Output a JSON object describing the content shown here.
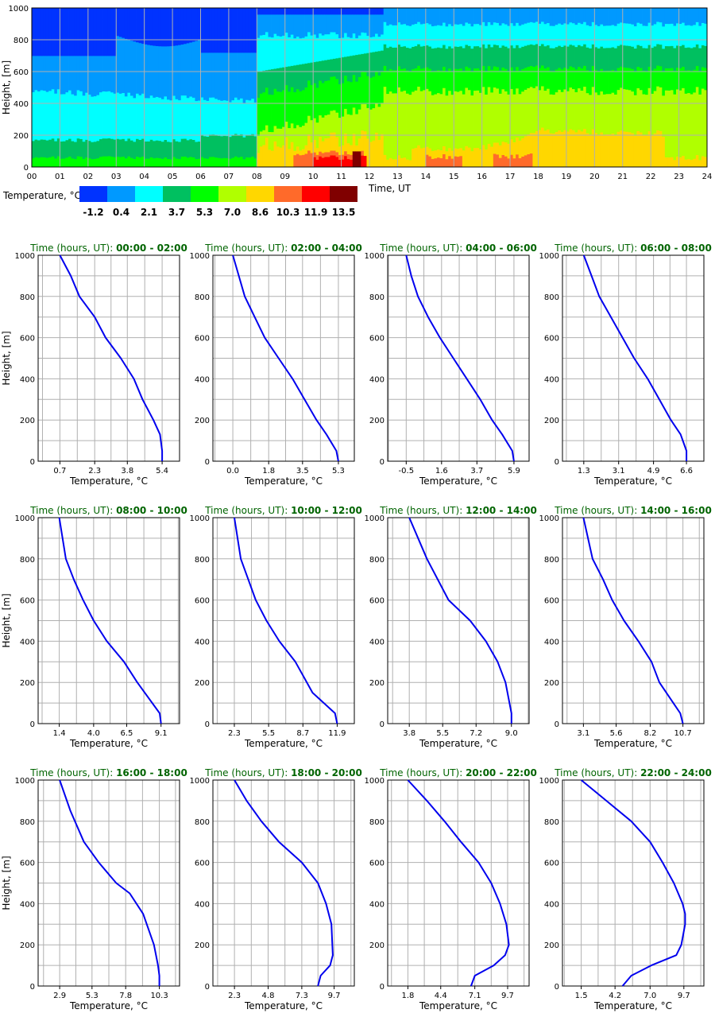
{
  "chart_data": [
    {
      "type": "heatmap",
      "xlabel": "Time, UT",
      "ylabel": "Height, [m]",
      "xlim": [
        0,
        24
      ],
      "ylim": [
        0,
        1000
      ],
      "x_ticks": [
        "00",
        "01",
        "02",
        "03",
        "04",
        "05",
        "06",
        "07",
        "08",
        "09",
        "10",
        "11",
        "12",
        "13",
        "14",
        "15",
        "16",
        "17",
        "18",
        "19",
        "20",
        "21",
        "22",
        "23",
        "24"
      ],
      "y_ticks": [
        "0",
        "200",
        "400",
        "600",
        "800",
        "1000"
      ],
      "grid": true,
      "legend": {
        "title": "Temperature, °C",
        "placement": "bottom-left",
        "labels": [
          "-1.2",
          "0.4",
          "2.1",
          "3.7",
          "5.3",
          "7.0",
          "8.6",
          "10.3",
          "11.9",
          "13.5"
        ],
        "colors": [
          "#0033ff",
          "#0099ff",
          "#00ffff",
          "#00c060",
          "#00ff00",
          "#b0ff00",
          "#ffd700",
          "#ff6a2a",
          "#ff0000",
          "#800000"
        ]
      }
    },
    {
      "type": "line",
      "title_prefix": "Time (hours, UT)",
      "title_range": "00:00 - 02:00",
      "xlabel": "Temperature, °C",
      "ylabel": "Height, [m]",
      "x_ticks": [
        "0.7",
        "2.3",
        "3.8",
        "5.4"
      ],
      "xlim": [
        -0.3,
        6.2
      ],
      "ylim": [
        0,
        1000
      ],
      "y_ticks": [
        "0",
        "200",
        "400",
        "600",
        "800",
        "1000"
      ],
      "series": [
        {
          "color": "#0000ee",
          "x": [
            0.7,
            1.2,
            1.6,
            2.3,
            2.8,
            3.5,
            4.1,
            4.5,
            5.0,
            5.3,
            5.4,
            5.4
          ],
          "y": [
            1000,
            900,
            800,
            700,
            600,
            500,
            400,
            300,
            200,
            130,
            50,
            0
          ]
        }
      ]
    },
    {
      "type": "line",
      "title_prefix": "Time (hours, UT)",
      "title_range": "02:00 - 04:00",
      "xlabel": "Temperature, °C",
      "ylabel": "Height, [m]",
      "x_ticks": [
        "0.0",
        "1.8",
        "3.5",
        "5.3"
      ],
      "xlim": [
        -1.0,
        6.1
      ],
      "ylim": [
        0,
        1000
      ],
      "y_ticks": [
        "0",
        "200",
        "400",
        "600",
        "800",
        "1000"
      ],
      "series": [
        {
          "color": "#0000ee",
          "x": [
            0.0,
            0.3,
            0.6,
            1.1,
            1.6,
            2.3,
            3.0,
            3.6,
            4.2,
            4.7,
            5.2,
            5.3
          ],
          "y": [
            1000,
            900,
            800,
            700,
            600,
            500,
            400,
            300,
            200,
            130,
            50,
            0
          ]
        }
      ]
    },
    {
      "type": "line",
      "title_prefix": "Time (hours, UT)",
      "title_range": "04:00 - 06:00",
      "xlabel": "Temperature, °C",
      "ylabel": "Height, [m]",
      "x_ticks": [
        "-0.5",
        "1.6",
        "3.7",
        "5.9"
      ],
      "xlim": [
        -1.6,
        6.8
      ],
      "ylim": [
        0,
        1000
      ],
      "y_ticks": [
        "0",
        "200",
        "400",
        "600",
        "800",
        "1000"
      ],
      "series": [
        {
          "color": "#0000ee",
          "x": [
            -0.5,
            -0.2,
            0.2,
            0.8,
            1.5,
            2.3,
            3.1,
            3.9,
            4.6,
            5.2,
            5.8,
            5.9
          ],
          "y": [
            1000,
            900,
            800,
            700,
            600,
            500,
            400,
            300,
            200,
            130,
            50,
            0
          ]
        }
      ]
    },
    {
      "type": "line",
      "title_prefix": "Time (hours, UT)",
      "title_range": "06:00 - 08:00",
      "xlabel": "Temperature, °C",
      "ylabel": "Height, [m]",
      "x_ticks": [
        "1.3",
        "3.1",
        "4.9",
        "6.6"
      ],
      "xlim": [
        0.2,
        7.5
      ],
      "ylim": [
        0,
        1000
      ],
      "y_ticks": [
        "0",
        "200",
        "400",
        "600",
        "800",
        "1000"
      ],
      "series": [
        {
          "color": "#0000ee",
          "x": [
            1.3,
            1.7,
            2.1,
            2.7,
            3.3,
            3.9,
            4.6,
            5.2,
            5.8,
            6.3,
            6.6,
            6.6
          ],
          "y": [
            1000,
            900,
            800,
            700,
            600,
            500,
            400,
            300,
            200,
            130,
            50,
            0
          ]
        }
      ]
    },
    {
      "type": "line",
      "title_prefix": "Time (hours, UT)",
      "title_range": "08:00 - 10:00",
      "xlabel": "Temperature, °C",
      "ylabel": "Height, [m]",
      "x_ticks": [
        "1.4",
        "4.0",
        "6.5",
        "9.1"
      ],
      "xlim": [
        -0.2,
        10.5
      ],
      "ylim": [
        0,
        1000
      ],
      "y_ticks": [
        "0",
        "200",
        "400",
        "600",
        "800",
        "1000"
      ],
      "series": [
        {
          "color": "#0000ee",
          "x": [
            1.4,
            1.9,
            2.5,
            3.2,
            4.0,
            5.0,
            6.3,
            7.3,
            9.0,
            9.1
          ],
          "y": [
            1000,
            800,
            700,
            600,
            500,
            400,
            300,
            200,
            50,
            0
          ]
        }
      ]
    },
    {
      "type": "line",
      "title_prefix": "Time (hours, UT)",
      "title_range": "10:00 - 12:00",
      "xlabel": "Temperature, °C",
      "ylabel": "Height, [m]",
      "x_ticks": [
        "2.3",
        "5.5",
        "8.7",
        "11.9"
      ],
      "xlim": [
        0.3,
        13.5
      ],
      "ylim": [
        0,
        1000
      ],
      "y_ticks": [
        "0",
        "200",
        "400",
        "600",
        "800",
        "1000"
      ],
      "series": [
        {
          "color": "#0000ee",
          "x": [
            2.3,
            2.9,
            3.6,
            4.3,
            5.3,
            6.5,
            8.0,
            9.6,
            11.7,
            11.9
          ],
          "y": [
            1000,
            800,
            700,
            600,
            500,
            400,
            300,
            150,
            50,
            0
          ]
        }
      ]
    },
    {
      "type": "line",
      "title_prefix": "Time (hours, UT)",
      "title_range": "12:00 - 14:00",
      "xlabel": "Temperature, °C",
      "ylabel": "Height, [m]",
      "x_ticks": [
        "3.8",
        "5.5",
        "7.2",
        "9.0"
      ],
      "xlim": [
        2.7,
        9.9
      ],
      "ylim": [
        0,
        1000
      ],
      "y_ticks": [
        "0",
        "200",
        "400",
        "600",
        "800",
        "1000"
      ],
      "series": [
        {
          "color": "#0000ee",
          "x": [
            3.8,
            4.7,
            5.8,
            6.9,
            7.7,
            8.3,
            8.7,
            8.9,
            9.0,
            9.0
          ],
          "y": [
            1000,
            800,
            600,
            500,
            400,
            300,
            200,
            100,
            50,
            0
          ]
        }
      ]
    },
    {
      "type": "line",
      "title_prefix": "Time (hours, UT)",
      "title_range": "14:00 - 16:00",
      "xlabel": "Temperature, °C",
      "ylabel": "Height, [m]",
      "x_ticks": [
        "3.1",
        "5.6",
        "8.2",
        "10.7"
      ],
      "xlim": [
        1.5,
        12.3
      ],
      "ylim": [
        0,
        1000
      ],
      "y_ticks": [
        "0",
        "200",
        "400",
        "600",
        "800",
        "1000"
      ],
      "series": [
        {
          "color": "#0000ee",
          "x": [
            3.1,
            3.8,
            4.6,
            5.3,
            6.2,
            7.3,
            8.3,
            8.9,
            10.5,
            10.7
          ],
          "y": [
            1000,
            800,
            700,
            600,
            500,
            400,
            300,
            200,
            50,
            0
          ]
        }
      ]
    },
    {
      "type": "line",
      "title_prefix": "Time (hours, UT)",
      "title_range": "16:00 - 18:00",
      "xlabel": "Temperature, °C",
      "ylabel": "Height, [m]",
      "x_ticks": [
        "2.9",
        "5.3",
        "7.8",
        "10.3"
      ],
      "xlim": [
        1.3,
        11.8
      ],
      "ylim": [
        0,
        1000
      ],
      "y_ticks": [
        "0",
        "200",
        "400",
        "600",
        "800",
        "1000"
      ],
      "series": [
        {
          "color": "#0000ee",
          "x": [
            2.9,
            3.7,
            4.7,
            5.8,
            7.1,
            8.1,
            9.1,
            9.9,
            10.2,
            10.3,
            10.3
          ],
          "y": [
            1000,
            850,
            700,
            600,
            500,
            450,
            350,
            200,
            100,
            50,
            0
          ]
        }
      ]
    },
    {
      "type": "line",
      "title_prefix": "Time (hours, UT)",
      "title_range": "18:00 - 20:00",
      "xlabel": "Temperature, °C",
      "ylabel": "Height, [m]",
      "x_ticks": [
        "2.3",
        "4.8",
        "7.3",
        "9.7"
      ],
      "xlim": [
        0.7,
        11.2
      ],
      "ylim": [
        0,
        1000
      ],
      "y_ticks": [
        "0",
        "200",
        "400",
        "600",
        "800",
        "1000"
      ],
      "series": [
        {
          "color": "#0000ee",
          "x": [
            2.3,
            3.2,
            4.3,
            5.6,
            7.3,
            8.5,
            9.1,
            9.5,
            9.6,
            9.4,
            8.7,
            8.5
          ],
          "y": [
            1000,
            900,
            800,
            700,
            600,
            500,
            400,
            300,
            150,
            100,
            50,
            0
          ]
        }
      ]
    },
    {
      "type": "line",
      "title_prefix": "Time (hours, UT)",
      "title_range": "20:00 - 22:00",
      "xlabel": "Temperature, °C",
      "ylabel": "Height, [m]",
      "x_ticks": [
        "1.8",
        "4.4",
        "7.1",
        "9.7"
      ],
      "xlim": [
        0.2,
        11.4
      ],
      "ylim": [
        0,
        1000
      ],
      "y_ticks": [
        "0",
        "200",
        "400",
        "600",
        "800",
        "1000"
      ],
      "series": [
        {
          "color": "#0000ee",
          "x": [
            1.8,
            3.3,
            4.7,
            6.0,
            7.4,
            8.4,
            9.1,
            9.6,
            9.8,
            9.5,
            8.6,
            7.1,
            6.8
          ],
          "y": [
            1000,
            900,
            800,
            700,
            600,
            500,
            400,
            300,
            200,
            150,
            100,
            50,
            0
          ]
        }
      ]
    },
    {
      "type": "line",
      "title_prefix": "Time (hours, UT)",
      "title_range": "22:00 - 24:00",
      "xlabel": "Temperature, °C",
      "ylabel": "Height, [m]",
      "x_ticks": [
        "1.5",
        "4.2",
        "7.0",
        "9.7"
      ],
      "xlim": [
        0.0,
        11.3
      ],
      "ylim": [
        0,
        1000
      ],
      "y_ticks": [
        "0",
        "200",
        "400",
        "600",
        "800",
        "1000"
      ],
      "series": [
        {
          "color": "#0000ee",
          "x": [
            1.5,
            3.5,
            5.5,
            7.0,
            8.0,
            8.9,
            9.6,
            9.8,
            9.8,
            9.5,
            9.1,
            7.1,
            5.5,
            4.8
          ],
          "y": [
            1000,
            900,
            800,
            700,
            600,
            500,
            400,
            350,
            300,
            200,
            150,
            100,
            50,
            0
          ]
        }
      ]
    }
  ]
}
